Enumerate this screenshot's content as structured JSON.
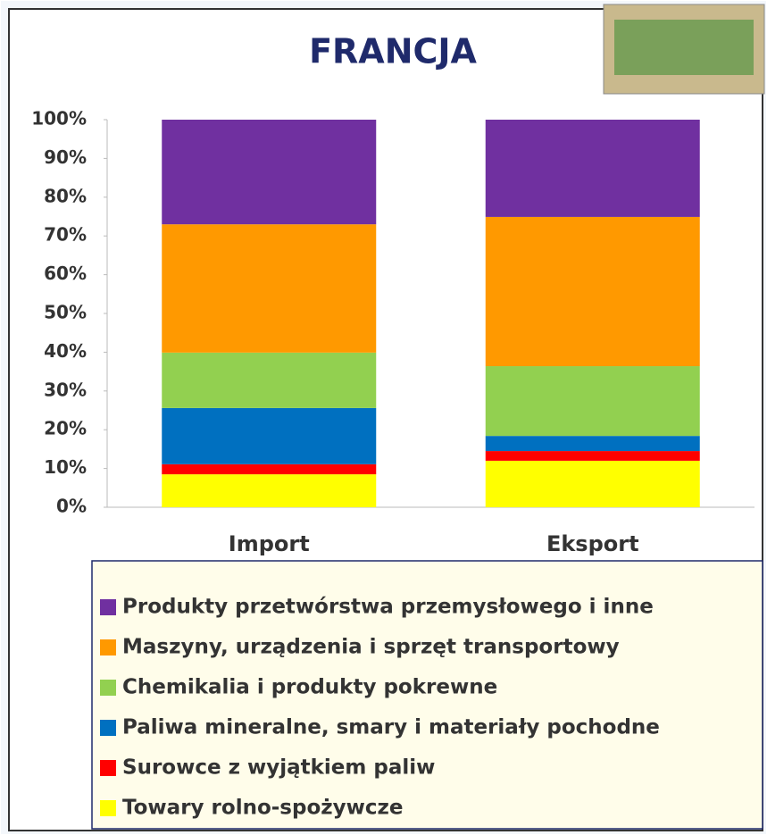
{
  "chart_data": {
    "type": "stacked_bar",
    "title": "FRANCJA",
    "categories": [
      "Import",
      "Eksport"
    ],
    "series": [
      {
        "name": "Produkty przetwórstwa przemysłowego i inne",
        "color": "#7030a0",
        "values": [
          27.0,
          25.1
        ]
      },
      {
        "name": "Maszyny, urządzenia i sprzęt transportowy",
        "color": "#ff9900",
        "values": [
          33.1,
          38.5
        ]
      },
      {
        "name": "Chemikalia i produkty pokrewne",
        "color": "#92d050",
        "values": [
          14.3,
          18.0
        ]
      },
      {
        "name": "Paliwa mineralne, smary i materiały pochodne",
        "color": "#0070c0",
        "values": [
          14.5,
          3.9
        ]
      },
      {
        "name": "Surowce z wyjątkiem paliw",
        "color": "#ff0000",
        "values": [
          2.6,
          2.5
        ]
      },
      {
        "name": "Towary  rolno-spożywcze",
        "color": "#ffff00",
        "values": [
          8.5,
          12.0
        ]
      }
    ],
    "ylim": [
      0,
      100
    ],
    "yticks": [
      {
        "value": 0,
        "label": "0%"
      },
      {
        "value": 10,
        "label": "10%"
      },
      {
        "value": 20,
        "label": "20%"
      },
      {
        "value": 30,
        "label": "30%"
      },
      {
        "value": 40,
        "label": "40%"
      },
      {
        "value": 50,
        "label": "50%"
      },
      {
        "value": 60,
        "label": "60%"
      },
      {
        "value": 70,
        "label": "70%"
      },
      {
        "value": 80,
        "label": "80%"
      },
      {
        "value": 90,
        "label": "90%"
      },
      {
        "value": 100,
        "label": "100%"
      }
    ],
    "grid": false
  }
}
